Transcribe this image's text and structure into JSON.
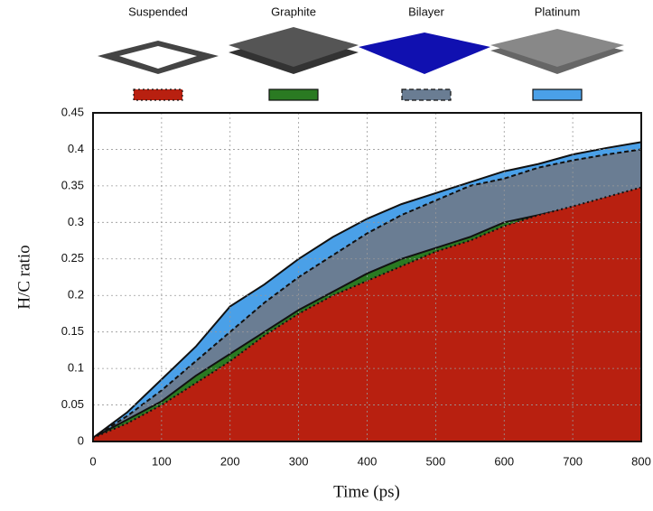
{
  "chart_data": {
    "type": "area",
    "x_label": "Time (ps)",
    "y_label": "H/C ratio",
    "x": [
      0,
      50,
      100,
      150,
      200,
      250,
      300,
      350,
      400,
      450,
      500,
      550,
      600,
      650,
      700,
      750,
      800
    ],
    "series": [
      {
        "name": "Suspended",
        "color": "#b82010",
        "line_style": "dotted",
        "values": [
          0.005,
          0.025,
          0.05,
          0.08,
          0.11,
          0.145,
          0.175,
          0.2,
          0.22,
          0.24,
          0.26,
          0.275,
          0.295,
          0.31,
          0.322,
          0.335,
          0.348
        ]
      },
      {
        "name": "Graphite",
        "color": "#2a7a22",
        "line_style": "solid",
        "values": [
          0.005,
          0.03,
          0.055,
          0.09,
          0.12,
          0.15,
          0.18,
          0.205,
          0.23,
          0.25,
          0.265,
          0.28,
          0.3,
          0.31,
          0.32,
          0.33,
          0.345
        ]
      },
      {
        "name": "Bilayer",
        "color": "#6a7d93",
        "line_style": "dashed",
        "values": [
          0.005,
          0.035,
          0.07,
          0.11,
          0.15,
          0.19,
          0.225,
          0.255,
          0.285,
          0.31,
          0.33,
          0.35,
          0.36,
          0.375,
          0.385,
          0.393,
          0.4
        ]
      },
      {
        "name": "Platinum",
        "color": "#4aa0e8",
        "line_style": "solid",
        "values": [
          0.005,
          0.04,
          0.085,
          0.13,
          0.185,
          0.215,
          0.25,
          0.28,
          0.305,
          0.325,
          0.34,
          0.355,
          0.37,
          0.38,
          0.393,
          0.402,
          0.41
        ]
      }
    ],
    "xlim": [
      0,
      800
    ],
    "xticks": [
      0,
      100,
      200,
      300,
      400,
      500,
      600,
      700,
      800
    ],
    "ylim": [
      0,
      0.45
    ],
    "yticks": [
      0,
      0.05,
      0.1,
      0.15,
      0.2,
      0.25,
      0.3,
      0.35,
      0.4,
      0.45
    ],
    "grid": true,
    "legend_position": "top"
  }
}
